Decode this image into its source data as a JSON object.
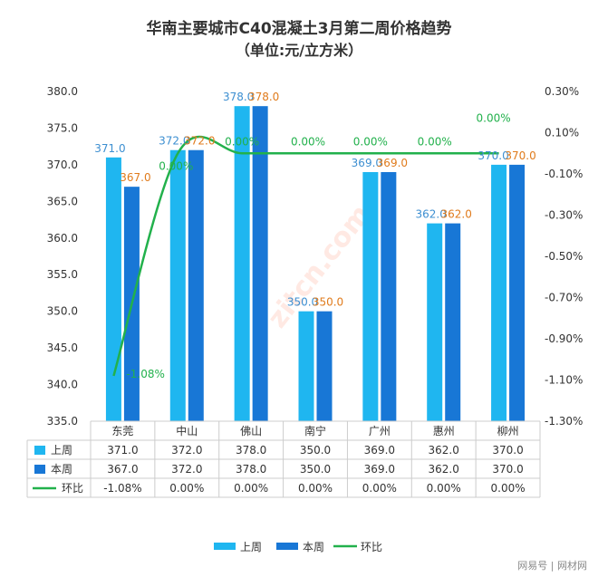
{
  "chart_data": {
    "type": "bar",
    "title": "华南主要城市C40混凝土3月第二周价格趋势",
    "subtitle": "（单位:元/立方米）",
    "categories": [
      "东莞",
      "中山",
      "佛山",
      "南宁",
      "广州",
      "惠州",
      "柳州"
    ],
    "series": [
      {
        "name": "上周",
        "values": [
          371.0,
          372.0,
          378.0,
          350.0,
          369.0,
          362.0,
          370.0
        ],
        "color": "#1fb6f0"
      },
      {
        "name": "本周",
        "values": [
          367.0,
          372.0,
          378.0,
          350.0,
          369.0,
          362.0,
          370.0
        ],
        "color": "#1877d6"
      },
      {
        "name": "环比",
        "type": "line",
        "axis": "secondary",
        "values": [
          -1.08,
          0.0,
          0.0,
          0.0,
          0.0,
          0.0,
          0.0
        ],
        "color": "#22b14c"
      }
    ],
    "bar_labels": {
      "上周": [
        "371.0",
        "372.0",
        "378.0",
        "350.0",
        "369.0",
        "362.0",
        "370.0"
      ],
      "本周": [
        "367.0",
        "372.0",
        "378.0",
        "350.0",
        "369.0",
        "362.0",
        "370.0"
      ]
    },
    "line_labels": [
      "-1.08%",
      "0.00%",
      "0.00%",
      "0.00%",
      "0.00%",
      "0.00%",
      "0.00%"
    ],
    "ylim": [
      335.0,
      380.0
    ],
    "y_ticks": [
      "380.0",
      "375.0",
      "370.0",
      "365.0",
      "360.0",
      "355.0",
      "350.0",
      "345.0",
      "340.0",
      "335.0"
    ],
    "y2lim": [
      -1.3,
      0.3
    ],
    "y2_ticks": [
      "0.30%",
      "0.10%",
      "-0.10%",
      "-0.30%",
      "-0.50%",
      "-0.70%",
      "-0.90%",
      "-1.10%",
      "-1.30%"
    ],
    "grid": false,
    "legend": "bottom",
    "table": {
      "rows": [
        {
          "name": "上周",
          "values": [
            "371.0",
            "372.0",
            "378.0",
            "350.0",
            "369.0",
            "362.0",
            "370.0"
          ]
        },
        {
          "name": "本周",
          "values": [
            "367.0",
            "372.0",
            "378.0",
            "350.0",
            "369.0",
            "362.0",
            "370.0"
          ]
        },
        {
          "name": "环比",
          "values": [
            "-1.08%",
            "0.00%",
            "0.00%",
            "0.00%",
            "0.00%",
            "0.00%",
            "0.00%"
          ]
        }
      ]
    }
  },
  "colors": {
    "label_light": "#3d8fd1",
    "label_dark": "#e07b1c",
    "axis_text": "#333333",
    "grid_border": "#cccccc"
  },
  "watermark": "zitcn.com",
  "footer": "网易号 | 网材网"
}
